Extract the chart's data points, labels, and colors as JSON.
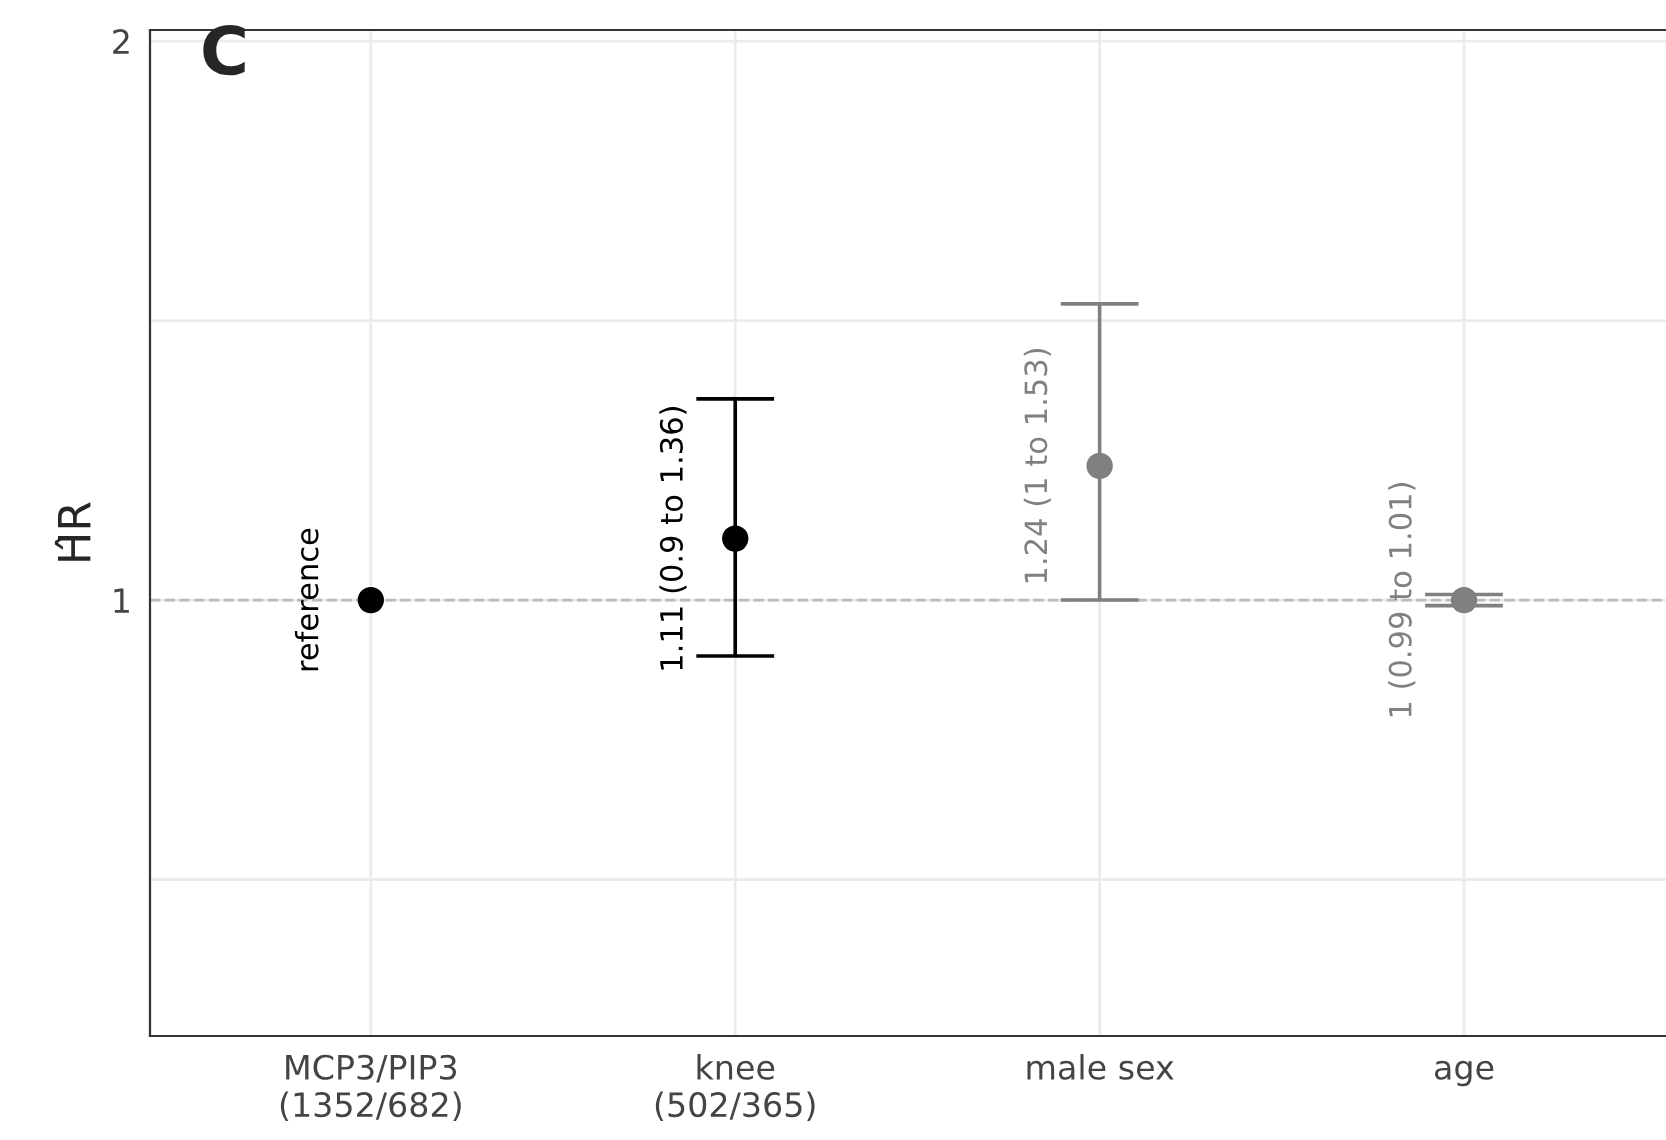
{
  "chart_data": {
    "type": "scatter",
    "ylabel": "ĤR",
    "categories": [
      "MCP3/PIP3\n(1352/682)",
      "knee\n(502/365)",
      "male sex",
      "age"
    ],
    "values": [
      1,
      1.11,
      1.24,
      1
    ],
    "errors": [
      null,
      [
        0.9,
        1.36
      ],
      [
        1,
        1.53
      ],
      [
        0.99,
        1.01
      ]
    ],
    "colors": [
      "#000000",
      "#000000",
      "#808080",
      "#808080"
    ],
    "value_labels": [
      "reference",
      "1.11 (0.9 to 1.36)",
      "1.24 (1 to 1.53)",
      "1 (0.99 to 1.01)"
    ],
    "ylim": [
      0.22,
      2.02
    ],
    "yticks": [
      {
        "value": 0.5,
        "label": null
      },
      1,
      {
        "value": 1.5,
        "label": null
      },
      2
    ],
    "ref_lines": [
      {
        "axis": "y",
        "value": 1,
        "color": "#bbbbbb",
        "line_style": "dashed"
      }
    ],
    "annotations": [
      "C"
    ],
    "grid": true,
    "marker": "circle"
  }
}
